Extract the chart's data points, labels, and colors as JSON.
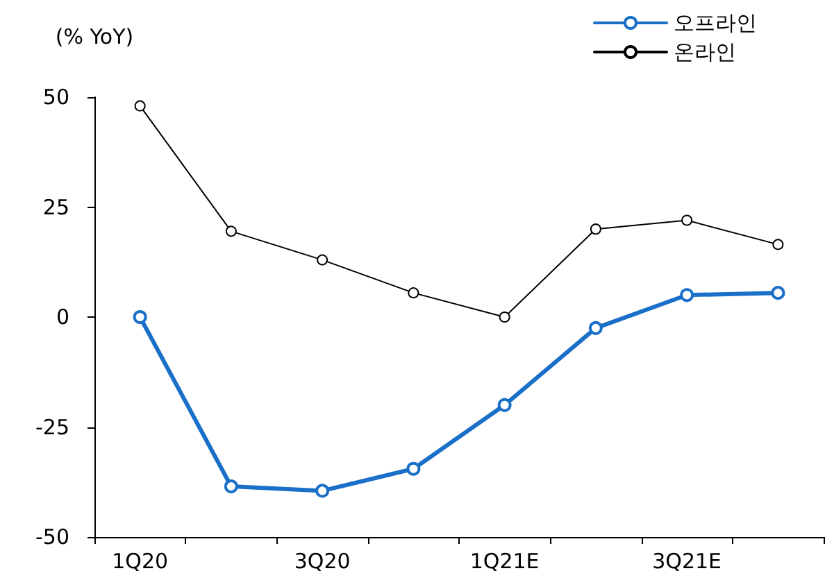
{
  "chart_data": {
    "type": "line",
    "ylabel": "(% YoY)",
    "categories": [
      "1Q20",
      null,
      "3Q20",
      null,
      "1Q21E",
      null,
      "3Q21E",
      null
    ],
    "series": [
      {
        "name": "오프라인",
        "color": "#1a6fc8",
        "values": [
          0,
          -38.5,
          -39.5,
          -34.5,
          -20,
          -2.5,
          5,
          5.5
        ]
      },
      {
        "name": "온라인",
        "color": "#000000",
        "values": [
          48,
          19.5,
          13,
          5.5,
          0,
          20,
          22,
          16.5
        ]
      }
    ],
    "ylim": [
      -50,
      50
    ],
    "yticks": [
      -50,
      -25,
      0,
      25,
      50
    ],
    "grid": false,
    "legend": "top right",
    "marker": "circle",
    "line_style": "solid"
  }
}
